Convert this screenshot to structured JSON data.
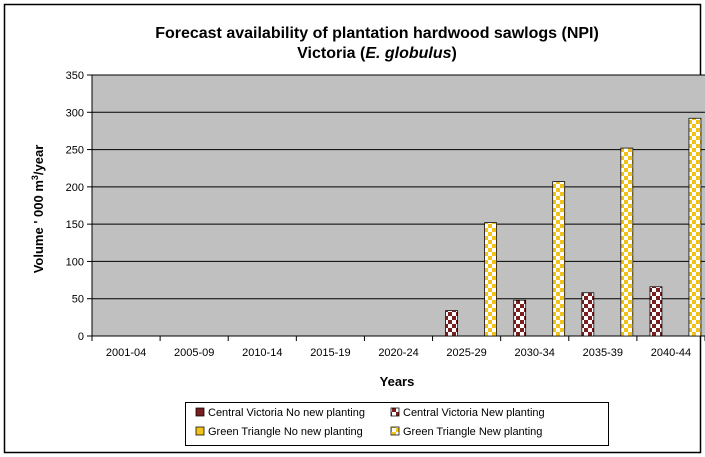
{
  "chart_data": {
    "type": "bar",
    "title": "Forecast availability of plantation hardwood sawlogs (NPI)",
    "subtitle_prefix": "Victoria (",
    "subtitle_species": "E. globulus",
    "subtitle_suffix": ")",
    "xlabel": "Years",
    "ylabel_prefix": "Volume ' 000 m",
    "ylabel_sup": "3",
    "ylabel_suffix": "/year",
    "ylim": [
      0,
      350
    ],
    "yticks": [
      "0",
      "50",
      "100",
      "150",
      "200",
      "250",
      "300",
      "350"
    ],
    "grid": true,
    "legend_position": "bottom",
    "categories": [
      "2001-04",
      "2005-09",
      "2010-14",
      "2015-19",
      "2020-24",
      "2025-29",
      "2030-34",
      "2035-39",
      "2040-44"
    ],
    "series": [
      {
        "name": "Central Victoria No new planting",
        "color": "#7a1f1f",
        "pattern": "solid",
        "values": [
          0,
          0,
          0,
          0,
          0,
          0,
          0,
          0,
          0
        ]
      },
      {
        "name": "Central Victoria New planting",
        "color": "#7a1f1f",
        "pattern": "checker",
        "values": [
          0,
          0,
          0,
          0,
          0,
          34,
          48,
          58,
          66
        ]
      },
      {
        "name": "Green Triangle No new planting",
        "color": "#f2c21b",
        "pattern": "solid",
        "values": [
          0,
          0,
          0,
          0,
          0,
          0,
          0,
          0,
          0
        ]
      },
      {
        "name": "Green Triangle New planting",
        "color": "#f2c21b",
        "pattern": "checker",
        "values": [
          0,
          0,
          0,
          0,
          0,
          152,
          207,
          252,
          292
        ]
      }
    ]
  },
  "colors": {
    "plot_background": "#c0c0c0",
    "gridline": "#000000"
  }
}
